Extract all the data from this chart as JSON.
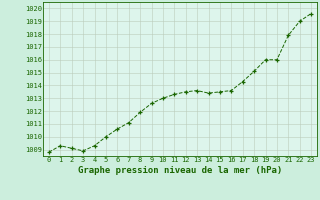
{
  "x": [
    0,
    1,
    2,
    3,
    4,
    5,
    6,
    7,
    8,
    9,
    10,
    11,
    12,
    13,
    14,
    15,
    16,
    17,
    18,
    19,
    20,
    21,
    22,
    23
  ],
  "y": [
    1008.8,
    1009.3,
    1009.1,
    1008.9,
    1009.3,
    1010.0,
    1010.6,
    1011.1,
    1011.9,
    1012.6,
    1013.0,
    1013.3,
    1013.5,
    1013.6,
    1013.4,
    1013.5,
    1013.6,
    1014.3,
    1015.1,
    1016.0,
    1016.0,
    1017.9,
    1019.0,
    1019.6
  ],
  "line_color": "#1a6600",
  "marker_color": "#1a6600",
  "bg_color": "#cceedd",
  "grid_color": "#bbccbb",
  "plot_bg": "#ddf5ec",
  "title": "Graphe pression niveau de la mer (hPa)",
  "title_color": "#1a6600",
  "title_fontsize": 6.5,
  "ylabel_ticks": [
    1009,
    1010,
    1011,
    1012,
    1013,
    1014,
    1015,
    1016,
    1017,
    1018,
    1019,
    1020
  ],
  "ylim": [
    1008.5,
    1020.5
  ],
  "xlim": [
    -0.5,
    23.5
  ],
  "border_color": "#1a6600",
  "tick_fontsize": 5.0
}
